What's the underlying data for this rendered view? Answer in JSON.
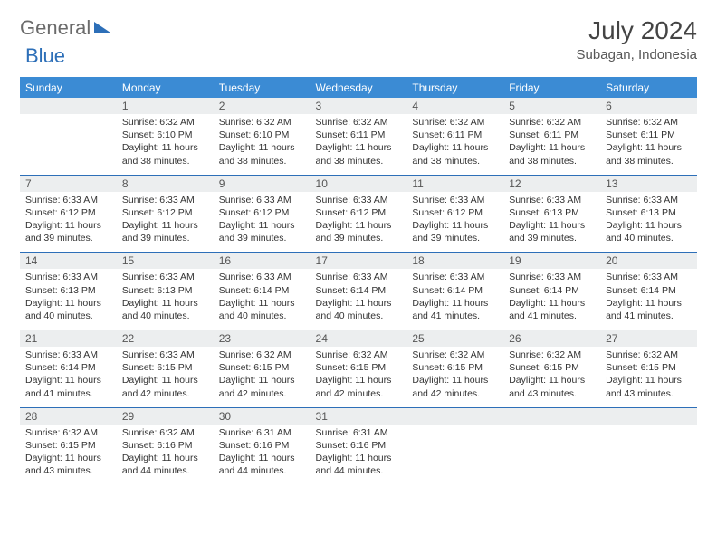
{
  "brand": {
    "part1": "General",
    "part2": "Blue"
  },
  "title": "July 2024",
  "location": "Subagan, Indonesia",
  "day_headers": [
    "Sunday",
    "Monday",
    "Tuesday",
    "Wednesday",
    "Thursday",
    "Friday",
    "Saturday"
  ],
  "colors": {
    "header_bg": "#3b8bd4",
    "header_text": "#ffffff",
    "numrow_bg": "#eceeef",
    "numrow_border": "#2d6fb8",
    "body_text": "#333333",
    "logo_gray": "#6b6b6b",
    "logo_blue": "#2d6fb8"
  },
  "typography": {
    "title_fontsize": 28,
    "location_fontsize": 15,
    "dayhead_fontsize": 12,
    "daynum_fontsize": 12,
    "cell_fontsize": 10.5
  },
  "weeks": [
    {
      "nums": [
        "",
        "1",
        "2",
        "3",
        "4",
        "5",
        "6"
      ],
      "cells": [
        null,
        {
          "sunrise": "6:32 AM",
          "sunset": "6:10 PM",
          "daylight": "11 hours and 38 minutes."
        },
        {
          "sunrise": "6:32 AM",
          "sunset": "6:10 PM",
          "daylight": "11 hours and 38 minutes."
        },
        {
          "sunrise": "6:32 AM",
          "sunset": "6:11 PM",
          "daylight": "11 hours and 38 minutes."
        },
        {
          "sunrise": "6:32 AM",
          "sunset": "6:11 PM",
          "daylight": "11 hours and 38 minutes."
        },
        {
          "sunrise": "6:32 AM",
          "sunset": "6:11 PM",
          "daylight": "11 hours and 38 minutes."
        },
        {
          "sunrise": "6:32 AM",
          "sunset": "6:11 PM",
          "daylight": "11 hours and 38 minutes."
        }
      ]
    },
    {
      "nums": [
        "7",
        "8",
        "9",
        "10",
        "11",
        "12",
        "13"
      ],
      "cells": [
        {
          "sunrise": "6:33 AM",
          "sunset": "6:12 PM",
          "daylight": "11 hours and 39 minutes."
        },
        {
          "sunrise": "6:33 AM",
          "sunset": "6:12 PM",
          "daylight": "11 hours and 39 minutes."
        },
        {
          "sunrise": "6:33 AM",
          "sunset": "6:12 PM",
          "daylight": "11 hours and 39 minutes."
        },
        {
          "sunrise": "6:33 AM",
          "sunset": "6:12 PM",
          "daylight": "11 hours and 39 minutes."
        },
        {
          "sunrise": "6:33 AM",
          "sunset": "6:12 PM",
          "daylight": "11 hours and 39 minutes."
        },
        {
          "sunrise": "6:33 AM",
          "sunset": "6:13 PM",
          "daylight": "11 hours and 39 minutes."
        },
        {
          "sunrise": "6:33 AM",
          "sunset": "6:13 PM",
          "daylight": "11 hours and 40 minutes."
        }
      ]
    },
    {
      "nums": [
        "14",
        "15",
        "16",
        "17",
        "18",
        "19",
        "20"
      ],
      "cells": [
        {
          "sunrise": "6:33 AM",
          "sunset": "6:13 PM",
          "daylight": "11 hours and 40 minutes."
        },
        {
          "sunrise": "6:33 AM",
          "sunset": "6:13 PM",
          "daylight": "11 hours and 40 minutes."
        },
        {
          "sunrise": "6:33 AM",
          "sunset": "6:14 PM",
          "daylight": "11 hours and 40 minutes."
        },
        {
          "sunrise": "6:33 AM",
          "sunset": "6:14 PM",
          "daylight": "11 hours and 40 minutes."
        },
        {
          "sunrise": "6:33 AM",
          "sunset": "6:14 PM",
          "daylight": "11 hours and 41 minutes."
        },
        {
          "sunrise": "6:33 AM",
          "sunset": "6:14 PM",
          "daylight": "11 hours and 41 minutes."
        },
        {
          "sunrise": "6:33 AM",
          "sunset": "6:14 PM",
          "daylight": "11 hours and 41 minutes."
        }
      ]
    },
    {
      "nums": [
        "21",
        "22",
        "23",
        "24",
        "25",
        "26",
        "27"
      ],
      "cells": [
        {
          "sunrise": "6:33 AM",
          "sunset": "6:14 PM",
          "daylight": "11 hours and 41 minutes."
        },
        {
          "sunrise": "6:33 AM",
          "sunset": "6:15 PM",
          "daylight": "11 hours and 42 minutes."
        },
        {
          "sunrise": "6:32 AM",
          "sunset": "6:15 PM",
          "daylight": "11 hours and 42 minutes."
        },
        {
          "sunrise": "6:32 AM",
          "sunset": "6:15 PM",
          "daylight": "11 hours and 42 minutes."
        },
        {
          "sunrise": "6:32 AM",
          "sunset": "6:15 PM",
          "daylight": "11 hours and 42 minutes."
        },
        {
          "sunrise": "6:32 AM",
          "sunset": "6:15 PM",
          "daylight": "11 hours and 43 minutes."
        },
        {
          "sunrise": "6:32 AM",
          "sunset": "6:15 PM",
          "daylight": "11 hours and 43 minutes."
        }
      ]
    },
    {
      "nums": [
        "28",
        "29",
        "30",
        "31",
        "",
        "",
        ""
      ],
      "cells": [
        {
          "sunrise": "6:32 AM",
          "sunset": "6:15 PM",
          "daylight": "11 hours and 43 minutes."
        },
        {
          "sunrise": "6:32 AM",
          "sunset": "6:16 PM",
          "daylight": "11 hours and 44 minutes."
        },
        {
          "sunrise": "6:31 AM",
          "sunset": "6:16 PM",
          "daylight": "11 hours and 44 minutes."
        },
        {
          "sunrise": "6:31 AM",
          "sunset": "6:16 PM",
          "daylight": "11 hours and 44 minutes."
        },
        null,
        null,
        null
      ]
    }
  ],
  "labels": {
    "sunrise_prefix": "Sunrise: ",
    "sunset_prefix": "Sunset: ",
    "daylight_prefix": "Daylight: "
  }
}
